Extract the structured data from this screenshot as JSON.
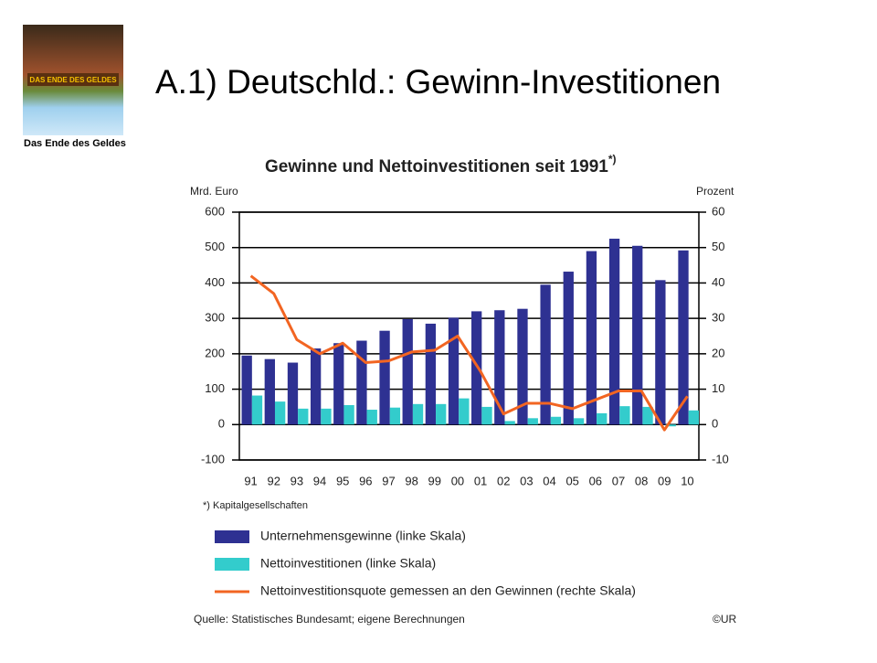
{
  "slide": {
    "title": "A.1) Deutschld.: Gewinn-Investitionen",
    "book": {
      "cover_title": "DAS ENDE DES GELDES",
      "caption": "Das Ende des Geldes"
    }
  },
  "chart_data": {
    "type": "bar",
    "title": "Gewinne und Nettoinvestitionen seit 1991",
    "title_note": "*)",
    "y_label": "Mrd. Euro",
    "y2_label": "Prozent",
    "footnote": "*) Kapitalgesellschaften",
    "source": "Quelle: Statistisches Bundesamt; eigene Berechnungen",
    "copyright": "©UR",
    "categories": [
      "91",
      "92",
      "93",
      "94",
      "95",
      "96",
      "97",
      "98",
      "99",
      "00",
      "01",
      "02",
      "03",
      "04",
      "05",
      "06",
      "07",
      "08",
      "09",
      "10"
    ],
    "ylim": [
      -100,
      600
    ],
    "yticks": [
      -100,
      0,
      100,
      200,
      300,
      400,
      500,
      600
    ],
    "y2lim": [
      -10,
      60
    ],
    "y2ticks": [
      -10,
      0,
      10,
      20,
      30,
      40,
      50,
      60
    ],
    "grid": true,
    "series": [
      {
        "name": "Unternehmensgewinne (linke Skala)",
        "type": "bar",
        "color": "#2e3192",
        "values": [
          195,
          185,
          175,
          215,
          230,
          237,
          265,
          298,
          285,
          302,
          320,
          323,
          327,
          395,
          432,
          490,
          525,
          505,
          408,
          492
        ]
      },
      {
        "name": "Nettoinvestitionen (linke Skala)",
        "type": "bar",
        "color": "#33cccc",
        "values": [
          82,
          65,
          45,
          45,
          55,
          42,
          48,
          58,
          58,
          74,
          50,
          10,
          18,
          22,
          18,
          32,
          52,
          50,
          -5,
          40
        ]
      },
      {
        "name": "Nettoinvestitionsquote gemessen an den Gewinnen (rechte Skala)",
        "type": "line",
        "axis": "y2",
        "color": "#f26522",
        "values": [
          42,
          37,
          24,
          20,
          23,
          17.5,
          18,
          20.5,
          21,
          25,
          15,
          3,
          6,
          6,
          4.5,
          7,
          9.5,
          9.5,
          -1.5,
          8
        ]
      }
    ]
  }
}
